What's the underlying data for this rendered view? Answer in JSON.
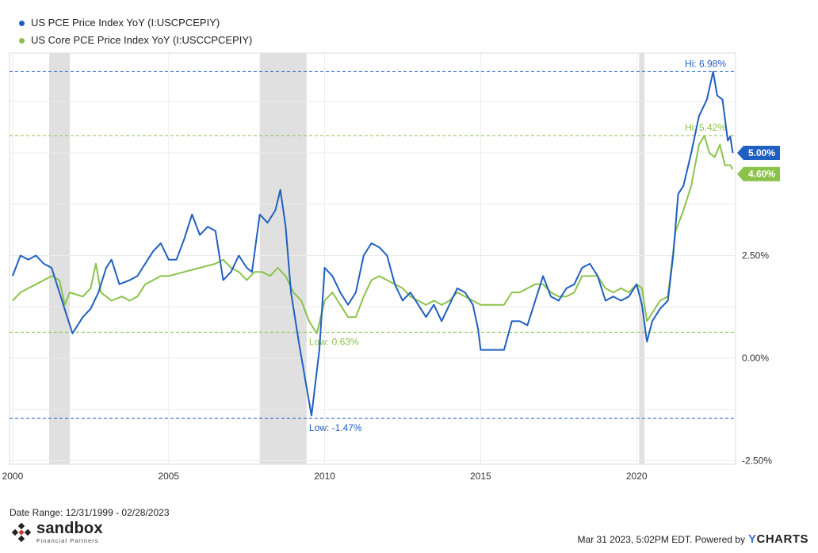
{
  "legend": [
    {
      "label": "US PCE Price Index YoY (I:USCPCEPIY)",
      "color": "#1f5fc2"
    },
    {
      "label": "US Core PCE Price Index YoY (I:USCCPCEPIY)",
      "color": "#8bc34a"
    }
  ],
  "footer": {
    "date_range": "Date Range: 12/31/1999 - 02/28/2023",
    "timestamp": "Mar 31 2023, 5:02PM EDT.  Powered by",
    "ycharts_y": "Y",
    "ycharts_rest": "CHARTS"
  },
  "logo": {
    "name": "sandbox",
    "sub": "Financial Partners"
  },
  "chart_data": {
    "type": "line",
    "title": "",
    "xlabel": "",
    "ylabel": "",
    "xlim": [
      1999.9,
      2023.17
    ],
    "ylim": [
      -2.5,
      7.5
    ],
    "x_ticks": [
      2000,
      2005,
      2010,
      2015,
      2020
    ],
    "x_tick_labels": [
      "2000",
      "2005",
      "2010",
      "2015",
      "2020"
    ],
    "y_ticks": [
      -2.5,
      0,
      2.5,
      5
    ],
    "y_tick_labels": [
      "-2.50%",
      "0.00%",
      "2.50%",
      "5.00%"
    ],
    "recessions": [
      [
        2001.17,
        2001.83
      ],
      [
        2007.92,
        2009.42
      ],
      [
        2020.08,
        2020.25
      ]
    ],
    "series": [
      {
        "name": "US PCE Price Index YoY (I:USCPCEPIY)",
        "color": "#1f5fc2",
        "last_label": "5.00%",
        "points": [
          [
            2000.0,
            2.0
          ],
          [
            2000.25,
            2.5
          ],
          [
            2000.5,
            2.4
          ],
          [
            2000.75,
            2.5
          ],
          [
            2001.0,
            2.3
          ],
          [
            2001.25,
            2.2
          ],
          [
            2001.5,
            1.6
          ],
          [
            2001.75,
            1.0
          ],
          [
            2001.92,
            0.6
          ],
          [
            2002.25,
            1.0
          ],
          [
            2002.5,
            1.2
          ],
          [
            2002.75,
            1.6
          ],
          [
            2003.0,
            2.2
          ],
          [
            2003.17,
            2.4
          ],
          [
            2003.42,
            1.8
          ],
          [
            2003.75,
            1.9
          ],
          [
            2004.0,
            2.0
          ],
          [
            2004.25,
            2.3
          ],
          [
            2004.5,
            2.6
          ],
          [
            2004.75,
            2.8
          ],
          [
            2005.0,
            2.4
          ],
          [
            2005.25,
            2.4
          ],
          [
            2005.5,
            2.9
          ],
          [
            2005.75,
            3.5
          ],
          [
            2006.0,
            3.0
          ],
          [
            2006.25,
            3.2
          ],
          [
            2006.5,
            3.1
          ],
          [
            2006.75,
            1.9
          ],
          [
            2007.0,
            2.1
          ],
          [
            2007.25,
            2.5
          ],
          [
            2007.5,
            2.2
          ],
          [
            2007.67,
            2.1
          ],
          [
            2007.92,
            3.5
          ],
          [
            2008.17,
            3.3
          ],
          [
            2008.42,
            3.6
          ],
          [
            2008.58,
            4.1
          ],
          [
            2008.75,
            3.2
          ],
          [
            2008.92,
            1.6
          ],
          [
            2009.17,
            0.4
          ],
          [
            2009.42,
            -0.7
          ],
          [
            2009.58,
            -1.4
          ],
          [
            2009.83,
            0.2
          ],
          [
            2010.0,
            2.2
          ],
          [
            2010.25,
            2.0
          ],
          [
            2010.5,
            1.6
          ],
          [
            2010.75,
            1.3
          ],
          [
            2011.0,
            1.6
          ],
          [
            2011.25,
            2.5
          ],
          [
            2011.5,
            2.8
          ],
          [
            2011.75,
            2.7
          ],
          [
            2012.0,
            2.5
          ],
          [
            2012.25,
            1.8
          ],
          [
            2012.5,
            1.4
          ],
          [
            2012.75,
            1.6
          ],
          [
            2013.0,
            1.3
          ],
          [
            2013.25,
            1.0
          ],
          [
            2013.5,
            1.3
          ],
          [
            2013.75,
            0.9
          ],
          [
            2014.0,
            1.3
          ],
          [
            2014.25,
            1.7
          ],
          [
            2014.5,
            1.6
          ],
          [
            2014.75,
            1.3
          ],
          [
            2014.92,
            0.7
          ],
          [
            2015.0,
            0.2
          ],
          [
            2015.25,
            0.2
          ],
          [
            2015.5,
            0.2
          ],
          [
            2015.75,
            0.2
          ],
          [
            2016.0,
            0.9
          ],
          [
            2016.25,
            0.9
          ],
          [
            2016.5,
            0.8
          ],
          [
            2016.75,
            1.4
          ],
          [
            2017.0,
            2.0
          ],
          [
            2017.25,
            1.5
          ],
          [
            2017.5,
            1.4
          ],
          [
            2017.75,
            1.7
          ],
          [
            2018.0,
            1.8
          ],
          [
            2018.25,
            2.2
          ],
          [
            2018.5,
            2.3
          ],
          [
            2018.75,
            2.0
          ],
          [
            2019.0,
            1.4
          ],
          [
            2019.25,
            1.5
          ],
          [
            2019.5,
            1.4
          ],
          [
            2019.75,
            1.5
          ],
          [
            2020.0,
            1.8
          ],
          [
            2020.17,
            1.3
          ],
          [
            2020.33,
            0.4
          ],
          [
            2020.5,
            0.9
          ],
          [
            2020.75,
            1.2
          ],
          [
            2021.0,
            1.4
          ],
          [
            2021.17,
            2.5
          ],
          [
            2021.33,
            4.0
          ],
          [
            2021.5,
            4.2
          ],
          [
            2021.75,
            5.0
          ],
          [
            2022.0,
            5.9
          ],
          [
            2022.25,
            6.3
          ],
          [
            2022.45,
            6.98
          ],
          [
            2022.58,
            6.4
          ],
          [
            2022.75,
            6.3
          ],
          [
            2022.92,
            5.3
          ],
          [
            2023.0,
            5.4
          ],
          [
            2023.08,
            5.0
          ]
        ]
      },
      {
        "name": "US Core PCE Price Index YoY (I:USCCPCEPIY)",
        "color": "#8bc34a",
        "last_label": "4.60%",
        "points": [
          [
            2000.0,
            1.4
          ],
          [
            2000.25,
            1.6
          ],
          [
            2000.5,
            1.7
          ],
          [
            2000.75,
            1.8
          ],
          [
            2001.0,
            1.9
          ],
          [
            2001.25,
            2.0
          ],
          [
            2001.5,
            1.9
          ],
          [
            2001.67,
            1.3
          ],
          [
            2001.83,
            1.6
          ],
          [
            2002.25,
            1.5
          ],
          [
            2002.5,
            1.7
          ],
          [
            2002.67,
            2.3
          ],
          [
            2002.83,
            1.6
          ],
          [
            2003.17,
            1.4
          ],
          [
            2003.5,
            1.5
          ],
          [
            2003.75,
            1.4
          ],
          [
            2004.0,
            1.5
          ],
          [
            2004.25,
            1.8
          ],
          [
            2004.5,
            1.9
          ],
          [
            2004.75,
            2.0
          ],
          [
            2005.0,
            2.0
          ],
          [
            2005.5,
            2.1
          ],
          [
            2006.0,
            2.2
          ],
          [
            2006.5,
            2.3
          ],
          [
            2006.75,
            2.4
          ],
          [
            2007.0,
            2.2
          ],
          [
            2007.25,
            2.1
          ],
          [
            2007.5,
            1.9
          ],
          [
            2007.75,
            2.1
          ],
          [
            2008.0,
            2.1
          ],
          [
            2008.25,
            2.0
          ],
          [
            2008.5,
            2.2
          ],
          [
            2008.75,
            2.0
          ],
          [
            2009.0,
            1.6
          ],
          [
            2009.25,
            1.4
          ],
          [
            2009.5,
            0.9
          ],
          [
            2009.75,
            0.6
          ],
          [
            2010.0,
            1.4
          ],
          [
            2010.25,
            1.6
          ],
          [
            2010.5,
            1.3
          ],
          [
            2010.75,
            1.0
          ],
          [
            2011.0,
            1.0
          ],
          [
            2011.25,
            1.5
          ],
          [
            2011.5,
            1.9
          ],
          [
            2011.75,
            2.0
          ],
          [
            2012.0,
            1.9
          ],
          [
            2012.25,
            1.8
          ],
          [
            2012.5,
            1.7
          ],
          [
            2012.75,
            1.5
          ],
          [
            2013.0,
            1.4
          ],
          [
            2013.25,
            1.3
          ],
          [
            2013.5,
            1.4
          ],
          [
            2013.75,
            1.3
          ],
          [
            2014.0,
            1.4
          ],
          [
            2014.25,
            1.6
          ],
          [
            2014.5,
            1.5
          ],
          [
            2014.75,
            1.4
          ],
          [
            2015.0,
            1.3
          ],
          [
            2015.25,
            1.3
          ],
          [
            2015.5,
            1.3
          ],
          [
            2015.75,
            1.3
          ],
          [
            2016.0,
            1.6
          ],
          [
            2016.25,
            1.6
          ],
          [
            2016.5,
            1.7
          ],
          [
            2016.75,
            1.8
          ],
          [
            2017.0,
            1.8
          ],
          [
            2017.25,
            1.6
          ],
          [
            2017.5,
            1.5
          ],
          [
            2017.75,
            1.5
          ],
          [
            2018.0,
            1.6
          ],
          [
            2018.25,
            2.0
          ],
          [
            2018.5,
            2.0
          ],
          [
            2018.75,
            2.0
          ],
          [
            2019.0,
            1.7
          ],
          [
            2019.25,
            1.6
          ],
          [
            2019.5,
            1.7
          ],
          [
            2019.75,
            1.6
          ],
          [
            2020.0,
            1.8
          ],
          [
            2020.17,
            1.7
          ],
          [
            2020.33,
            0.9
          ],
          [
            2020.5,
            1.1
          ],
          [
            2020.75,
            1.4
          ],
          [
            2021.0,
            1.5
          ],
          [
            2021.25,
            3.1
          ],
          [
            2021.5,
            3.6
          ],
          [
            2021.75,
            4.2
          ],
          [
            2022.0,
            5.2
          ],
          [
            2022.17,
            5.42
          ],
          [
            2022.33,
            5.0
          ],
          [
            2022.5,
            4.9
          ],
          [
            2022.67,
            5.2
          ],
          [
            2022.83,
            4.7
          ],
          [
            2023.0,
            4.7
          ],
          [
            2023.08,
            4.6
          ]
        ]
      }
    ],
    "reference_lines": [
      {
        "label": "Hi: 6.98%",
        "value": 6.98,
        "color": "#1f5fc2"
      },
      {
        "label": "Hi: 5.42%",
        "value": 5.42,
        "color": "#8bc34a"
      },
      {
        "label": "Low: 0.63%",
        "value": 0.63,
        "color": "#8bc34a"
      },
      {
        "label": "Low: -1.47%",
        "value": -1.47,
        "color": "#1f5fc2"
      }
    ]
  }
}
